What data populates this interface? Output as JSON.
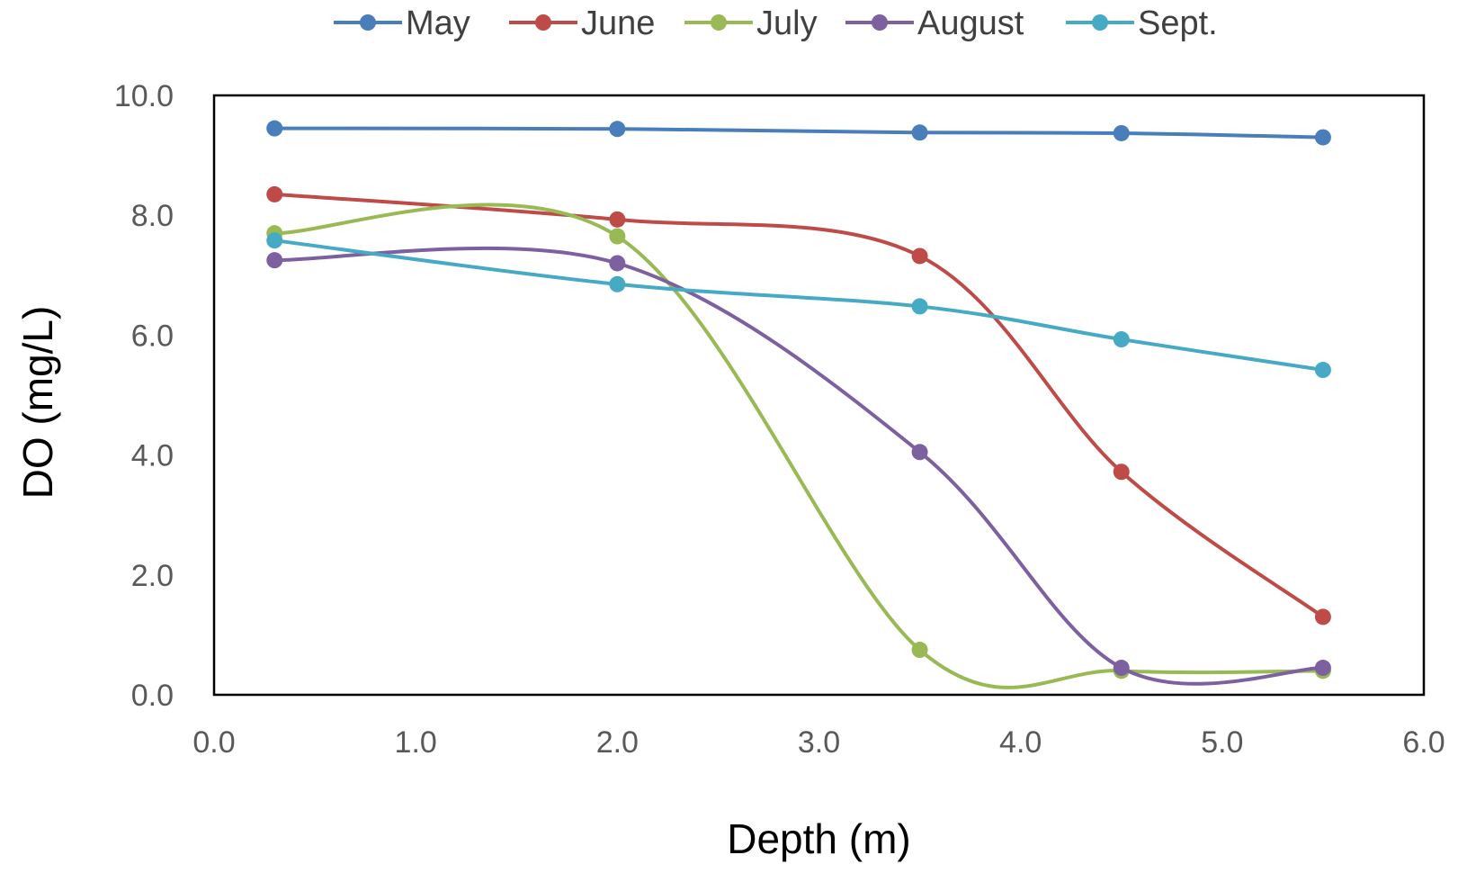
{
  "chart_data": {
    "type": "line",
    "smooth": true,
    "title": "",
    "xlabel": "Depth (m)",
    "ylabel": "DO (mg/L)",
    "xlim": [
      0,
      6
    ],
    "ylim": [
      0,
      10
    ],
    "xticks": [
      0,
      1,
      2,
      3,
      4,
      5,
      6
    ],
    "yticks": [
      0,
      2,
      4,
      6,
      8,
      10
    ],
    "xtick_labels": [
      "0.0",
      "1.0",
      "2.0",
      "3.0",
      "4.0",
      "5.0",
      "6.0"
    ],
    "ytick_labels": [
      "0.0",
      "2.0",
      "4.0",
      "6.0",
      "8.0",
      "10.0"
    ],
    "grid": false,
    "legend_position": "top",
    "x": [
      0.3,
      2.0,
      3.5,
      4.5,
      5.5
    ],
    "series": [
      {
        "name": "May",
        "color": "#4A7EBB",
        "values": [
          9.45,
          9.44,
          9.38,
          9.37,
          9.3
        ]
      },
      {
        "name": "June",
        "color": "#BE4B48",
        "values": [
          8.35,
          7.93,
          7.32,
          3.72,
          1.3
        ]
      },
      {
        "name": "July",
        "color": "#98B954",
        "values": [
          7.7,
          7.65,
          0.75,
          0.4,
          0.4
        ]
      },
      {
        "name": "August",
        "color": "#7D60A0",
        "values": [
          7.25,
          7.2,
          4.05,
          0.45,
          0.45
        ]
      },
      {
        "name": "Sept.",
        "color": "#46AAC5",
        "values": [
          7.58,
          6.85,
          6.48,
          5.93,
          5.42
        ]
      }
    ]
  }
}
